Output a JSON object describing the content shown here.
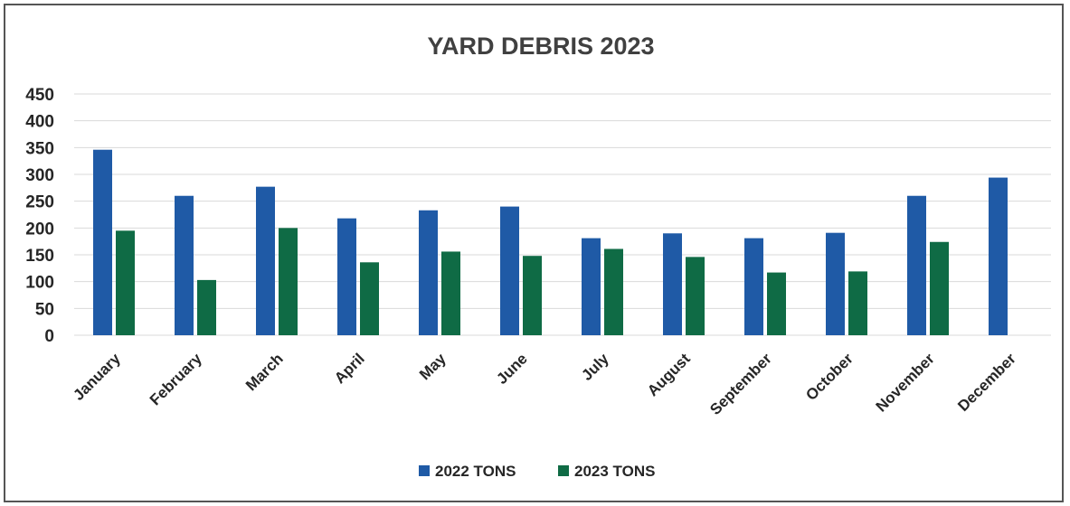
{
  "chart_data": {
    "type": "bar",
    "title": "YARD DEBRIS 2023",
    "xlabel": "",
    "ylabel": "",
    "ylim": [
      0,
      450
    ],
    "yticks": [
      0,
      50,
      100,
      150,
      200,
      250,
      300,
      350,
      400,
      450
    ],
    "grid": true,
    "legend_position": "bottom",
    "categories": [
      "January",
      "February",
      "March",
      "April",
      "May",
      "June",
      "July",
      "August",
      "September",
      "October",
      "November",
      "December"
    ],
    "series": [
      {
        "name": "2022 TONS",
        "color": "#1f5aa6",
        "values": [
          346,
          260,
          277,
          218,
          233,
          240,
          181,
          190,
          181,
          191,
          260,
          294
        ]
      },
      {
        "name": "2023 TONS",
        "color": "#0f6b45",
        "values": [
          195,
          103,
          200,
          136,
          156,
          148,
          161,
          146,
          117,
          119,
          174,
          null
        ]
      }
    ]
  }
}
